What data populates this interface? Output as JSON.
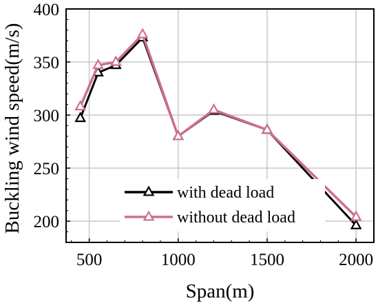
{
  "chart_data": {
    "type": "line",
    "xlabel": "Span(m)",
    "ylabel": "Buckling wind speed(m/s)",
    "xlim": [
      370,
      2100
    ],
    "ylim": [
      180,
      400
    ],
    "xticks": [
      500,
      1000,
      1500,
      2000
    ],
    "yticks": [
      200,
      250,
      300,
      350,
      400
    ],
    "xtick_labels": [
      "500",
      "1000",
      "1500",
      "2000"
    ],
    "ytick_labels": [
      "200",
      "250",
      "300",
      "350",
      "400"
    ],
    "grid": true,
    "legend_position": "lower-left",
    "series": [
      {
        "name": "with dead load",
        "color": "#000000",
        "marker": "triangle-open",
        "x": [
          450,
          550,
          650,
          800,
          1000,
          1200,
          1500,
          2000
        ],
        "values": [
          297,
          340,
          347,
          373,
          280,
          304,
          286,
          196
        ]
      },
      {
        "name": "without dead load",
        "color": "#cc6f8f",
        "marker": "triangle-open",
        "x": [
          450,
          550,
          650,
          800,
          1000,
          1200,
          1500,
          2000
        ],
        "values": [
          308,
          347,
          350,
          376,
          280,
          305,
          286,
          204
        ]
      }
    ]
  }
}
